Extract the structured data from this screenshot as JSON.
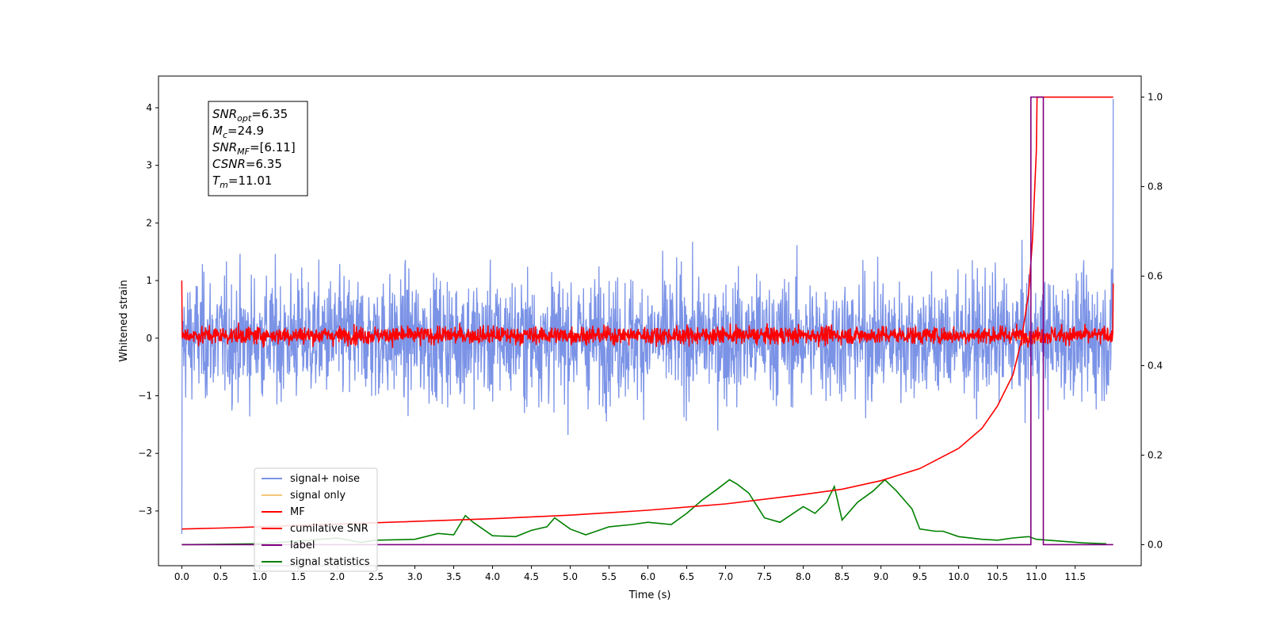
{
  "chart_data": {
    "type": "line",
    "xlabel": "Time (s)",
    "ylabel": "Whitened strain",
    "x_ticks": [
      "0.0",
      "0.5",
      "1.0",
      "1.5",
      "2.0",
      "2.5",
      "3.0",
      "3.5",
      "4.0",
      "4.5",
      "5.0",
      "5.5",
      "6.0",
      "6.5",
      "7.0",
      "7.5",
      "8.0",
      "8.5",
      "9.0",
      "9.5",
      "10.0",
      "10.5",
      "11.0",
      "11.5"
    ],
    "y_ticks": [
      "−3",
      "−2",
      "−1",
      "0",
      "1",
      "2",
      "3",
      "4"
    ],
    "y2_ticks": [
      "0.0",
      "0.2",
      "0.4",
      "0.6",
      "0.8",
      "1.0"
    ],
    "xlim": [
      -0.3,
      12.35
    ],
    "ylim": [
      -3.95,
      4.55
    ],
    "y2lim": [
      -0.047,
      1.047
    ],
    "grid": false,
    "legend_position": "lower-left",
    "annotation": {
      "lines": [
        {
          "base": "SNR",
          "sub": "opt",
          "rest": "=6.35"
        },
        {
          "base": "M",
          "sub": "c",
          "rest": "=24.9"
        },
        {
          "base": "SNR",
          "sub": "MF",
          "rest": "=[6.11]"
        },
        {
          "base": "CSNR",
          "sub": "",
          "rest": "=6.35"
        },
        {
          "base": "T",
          "sub": "m",
          "rest": "=11.01"
        }
      ]
    },
    "series": [
      {
        "name": "signal+ noise",
        "color": "#7b93e6",
        "axis": "left",
        "style": "noise",
        "x_range": [
          0.0,
          11.99
        ],
        "approx_range": [
          -2.6,
          2.6
        ],
        "spike_max": 4.15
      },
      {
        "name": "signal only",
        "color": "#f5c77a",
        "axis": "left",
        "style": "chirp",
        "merger_time": 11.01,
        "peak_amplitude": 0.25
      },
      {
        "name": "MF",
        "color": "#ff0000",
        "axis": "left",
        "style": "noise",
        "x_range": [
          0.0,
          11.99
        ],
        "approx_range": [
          -0.25,
          0.45
        ]
      },
      {
        "name": "cumilative SNR",
        "color": "#ff0000",
        "axis": "right",
        "x": [
          0.0,
          0.5,
          1.0,
          2.0,
          3.0,
          4.0,
          5.0,
          6.0,
          7.0,
          8.0,
          8.5,
          9.0,
          9.5,
          10.0,
          10.3,
          10.5,
          10.7,
          10.8,
          10.9,
          10.95,
          11.0,
          11.01,
          11.99
        ],
        "values": [
          0.035,
          0.037,
          0.04,
          0.046,
          0.052,
          0.058,
          0.066,
          0.077,
          0.091,
          0.112,
          0.124,
          0.143,
          0.17,
          0.215,
          0.26,
          0.31,
          0.38,
          0.45,
          0.56,
          0.68,
          0.88,
          1.0,
          1.0
        ]
      },
      {
        "name": "label",
        "color": "#800080",
        "axis": "right",
        "x": [
          0.0,
          10.93,
          10.93,
          11.09,
          11.09,
          11.99
        ],
        "values": [
          0.0,
          0.0,
          1.0,
          1.0,
          0.0,
          0.0
        ]
      },
      {
        "name": "signal statistics",
        "color": "#008000",
        "axis": "right",
        "x": [
          0.0,
          0.5,
          1.0,
          1.5,
          2.0,
          2.3,
          2.5,
          3.0,
          3.3,
          3.5,
          3.65,
          3.75,
          4.0,
          4.3,
          4.5,
          4.7,
          4.8,
          5.0,
          5.2,
          5.5,
          5.8,
          6.0,
          6.3,
          6.5,
          6.7,
          6.9,
          7.05,
          7.15,
          7.3,
          7.5,
          7.7,
          8.0,
          8.15,
          8.3,
          8.4,
          8.5,
          8.7,
          8.9,
          9.05,
          9.2,
          9.4,
          9.5,
          9.7,
          9.8,
          10.0,
          10.3,
          10.5,
          10.7,
          10.9,
          11.0,
          11.3,
          11.6,
          11.9
        ],
        "values": [
          0.0,
          0.001,
          0.002,
          0.008,
          0.015,
          0.005,
          0.01,
          0.012,
          0.025,
          0.022,
          0.065,
          0.05,
          0.02,
          0.018,
          0.032,
          0.04,
          0.06,
          0.035,
          0.022,
          0.04,
          0.045,
          0.05,
          0.045,
          0.07,
          0.1,
          0.125,
          0.145,
          0.135,
          0.115,
          0.06,
          0.05,
          0.085,
          0.07,
          0.095,
          0.13,
          0.055,
          0.095,
          0.12,
          0.145,
          0.12,
          0.08,
          0.035,
          0.03,
          0.03,
          0.018,
          0.012,
          0.01,
          0.015,
          0.018,
          0.012,
          0.008,
          0.004,
          0.002
        ]
      }
    ]
  }
}
